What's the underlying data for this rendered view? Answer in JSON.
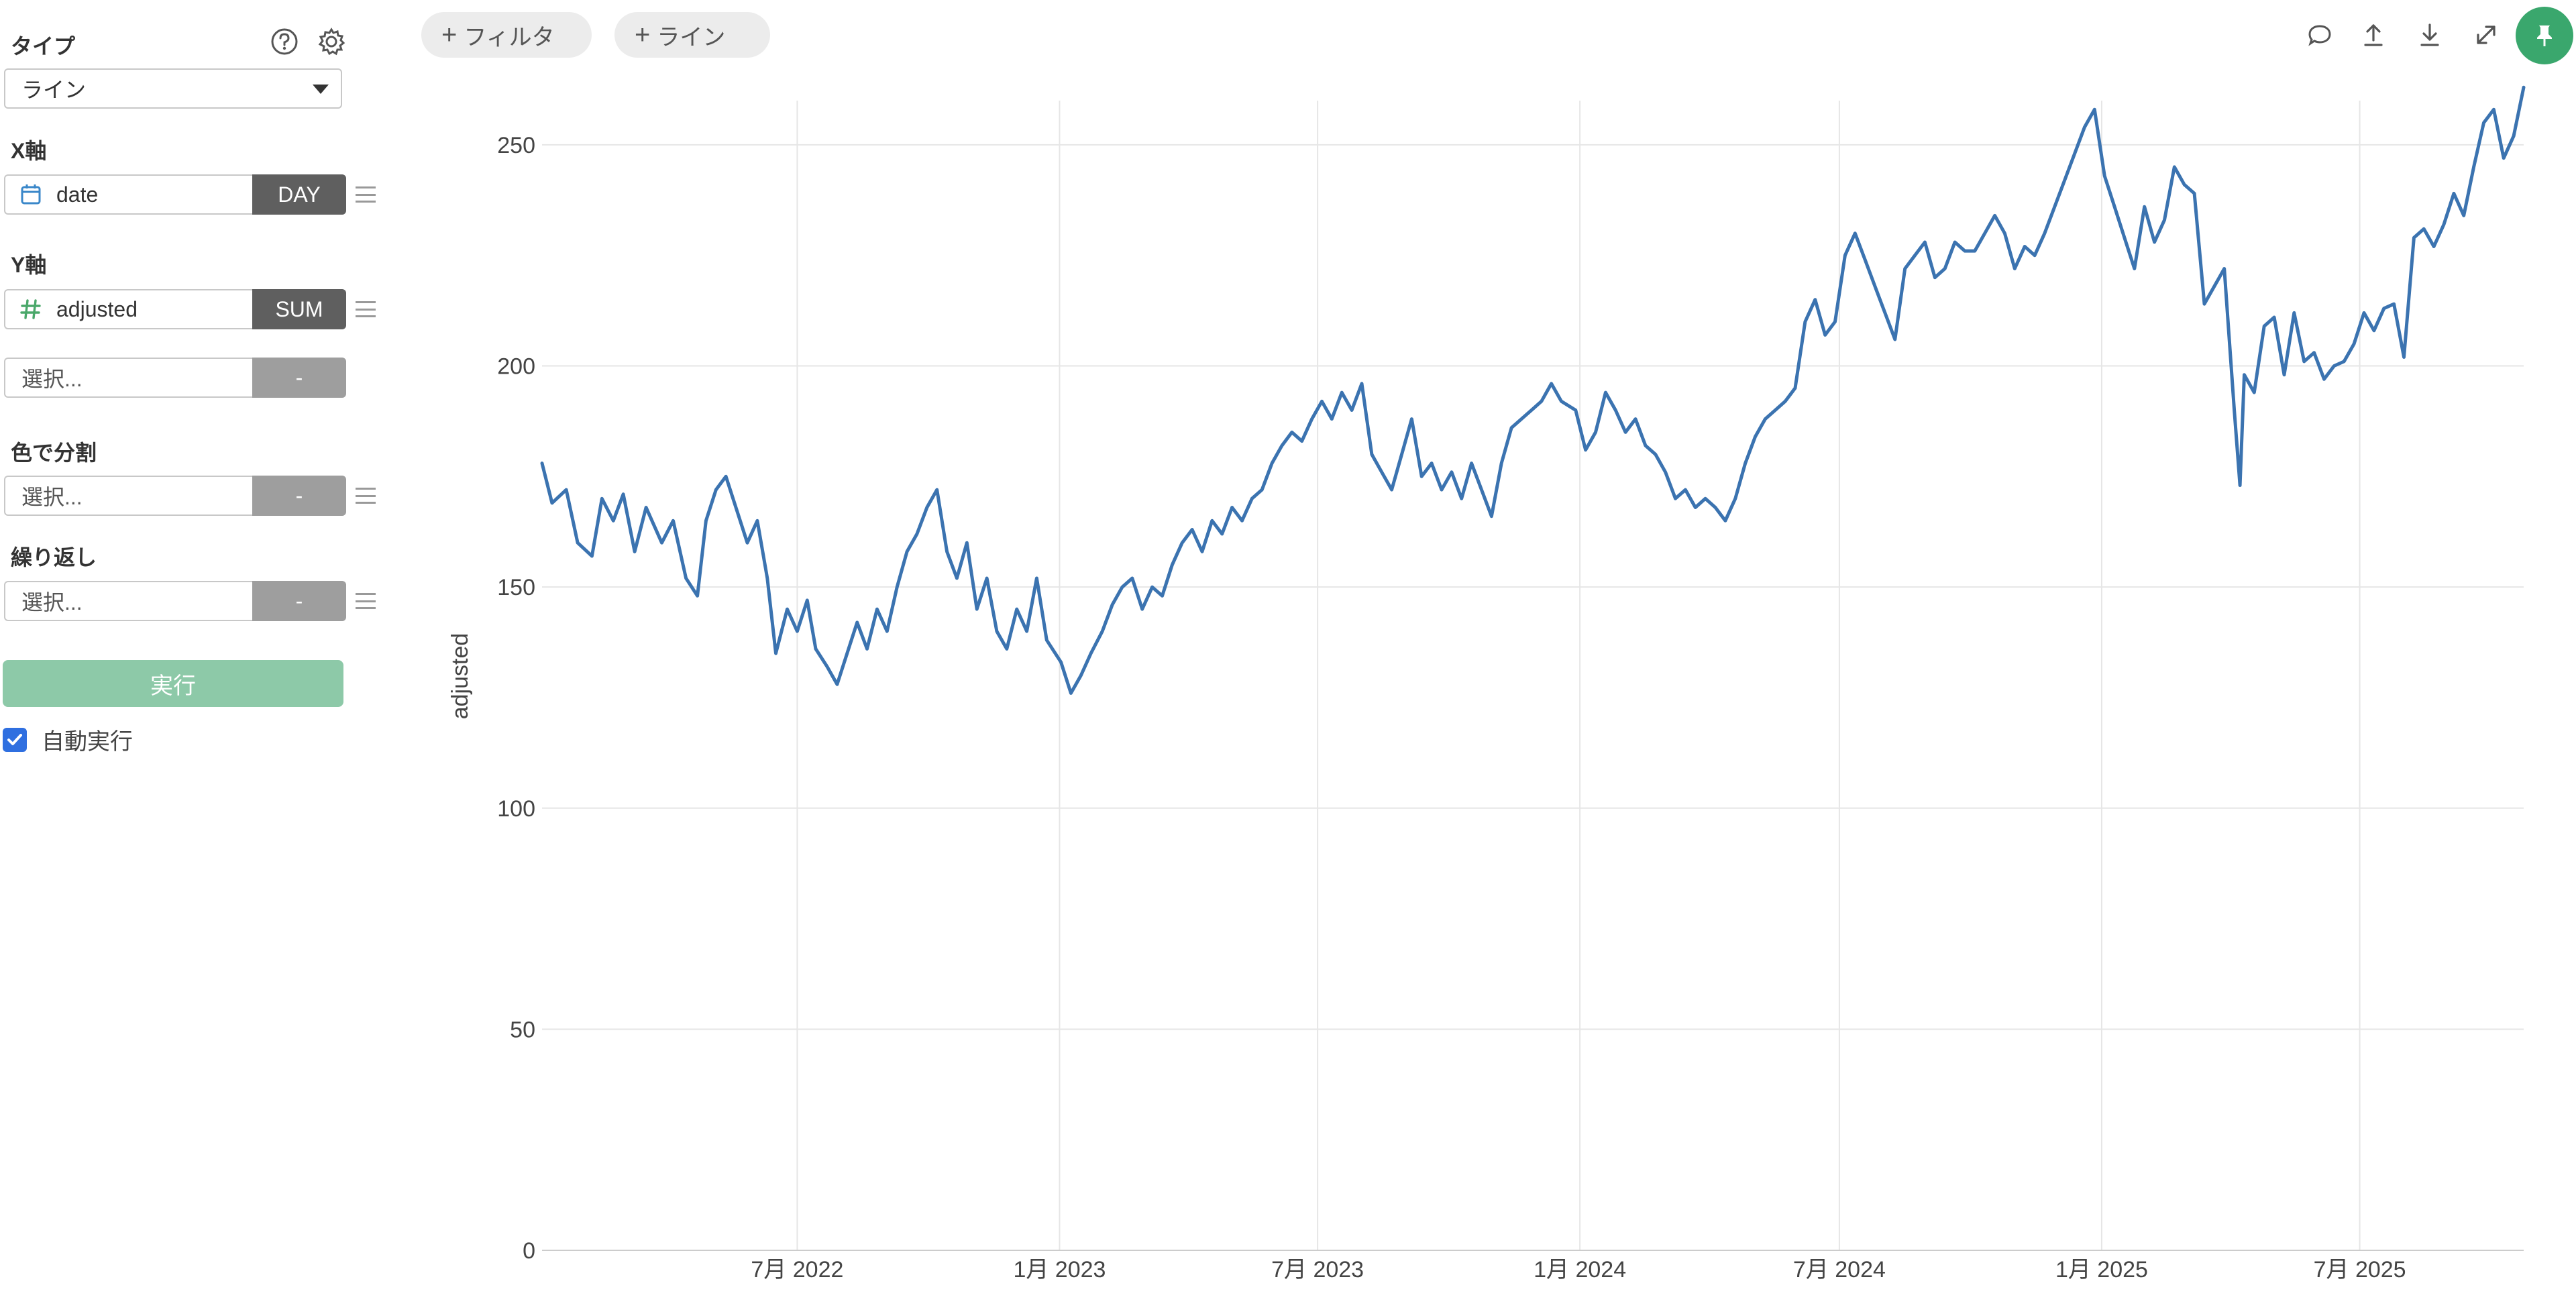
{
  "sidebar": {
    "type_label": "タイプ",
    "type_value": "ライン",
    "x_axis_label": "X軸",
    "x_field": "date",
    "x_agg": "DAY",
    "y_axis_label": "Y軸",
    "y_field": "adjusted",
    "y_agg": "SUM",
    "y_extra_placeholder": "選択...",
    "y_extra_tag": "-",
    "color_split_label": "色で分割",
    "color_split_placeholder": "選択...",
    "color_split_tag": "-",
    "repeat_label": "繰り返し",
    "repeat_placeholder": "選択...",
    "repeat_tag": "-",
    "run_label": "実行",
    "auto_run_label": "自動実行",
    "auto_run_checked": true
  },
  "topbar": {
    "filter_label": "フィルタ",
    "line_label": "ライン"
  },
  "colors": {
    "accent": "#3aa76d",
    "run_button": "#8dc9a8",
    "series_line": "#3b73b0",
    "tag_dark": "#5f5f5f",
    "tag_gray": "#9e9e9e"
  },
  "icons": [
    "help-icon",
    "gear-icon",
    "calendar-icon",
    "hash-icon",
    "comment-icon",
    "upload-icon",
    "download-icon",
    "expand-icon",
    "pin-icon"
  ],
  "chart_data": {
    "type": "line",
    "ylabel": "adjusted",
    "xlabel": "",
    "ylim": [
      0,
      260
    ],
    "xlim": [
      "2022-01-03",
      "2025-10-24"
    ],
    "y_ticks": [
      0,
      50,
      100,
      150,
      200,
      250
    ],
    "x_ticks": [
      {
        "date": "2022-07-01",
        "label": "7月 2022"
      },
      {
        "date": "2023-01-01",
        "label": "1月 2023"
      },
      {
        "date": "2023-07-01",
        "label": "7月 2023"
      },
      {
        "date": "2024-01-01",
        "label": "1月 2024"
      },
      {
        "date": "2024-07-01",
        "label": "7月 2024"
      },
      {
        "date": "2025-01-01",
        "label": "1月 2025"
      },
      {
        "date": "2025-07-01",
        "label": "7月 2025"
      }
    ],
    "grid": true,
    "series": [
      {
        "values": [
          [
            "2022-01-03",
            178
          ],
          [
            "2022-01-10",
            169
          ],
          [
            "2022-01-20",
            172
          ],
          [
            "2022-01-28",
            160
          ],
          [
            "2022-02-07",
            157
          ],
          [
            "2022-02-14",
            170
          ],
          [
            "2022-02-22",
            165
          ],
          [
            "2022-03-01",
            171
          ],
          [
            "2022-03-09",
            158
          ],
          [
            "2022-03-17",
            168
          ],
          [
            "2022-03-28",
            160
          ],
          [
            "2022-04-05",
            165
          ],
          [
            "2022-04-14",
            152
          ],
          [
            "2022-04-22",
            148
          ],
          [
            "2022-04-28",
            165
          ],
          [
            "2022-05-05",
            172
          ],
          [
            "2022-05-12",
            175
          ],
          [
            "2022-05-19",
            168
          ],
          [
            "2022-05-27",
            160
          ],
          [
            "2022-06-03",
            165
          ],
          [
            "2022-06-10",
            152
          ],
          [
            "2022-06-16",
            135
          ],
          [
            "2022-06-24",
            145
          ],
          [
            "2022-07-01",
            140
          ],
          [
            "2022-07-08",
            147
          ],
          [
            "2022-07-14",
            136
          ],
          [
            "2022-07-22",
            132
          ],
          [
            "2022-07-29",
            128
          ],
          [
            "2022-08-05",
            135
          ],
          [
            "2022-08-12",
            142
          ],
          [
            "2022-08-19",
            136
          ],
          [
            "2022-08-26",
            145
          ],
          [
            "2022-09-02",
            140
          ],
          [
            "2022-09-09",
            150
          ],
          [
            "2022-09-16",
            158
          ],
          [
            "2022-09-23",
            162
          ],
          [
            "2022-09-30",
            168
          ],
          [
            "2022-10-07",
            172
          ],
          [
            "2022-10-14",
            158
          ],
          [
            "2022-10-21",
            152
          ],
          [
            "2022-10-28",
            160
          ],
          [
            "2022-11-04",
            145
          ],
          [
            "2022-11-11",
            152
          ],
          [
            "2022-11-18",
            140
          ],
          [
            "2022-11-25",
            136
          ],
          [
            "2022-12-02",
            145
          ],
          [
            "2022-12-09",
            140
          ],
          [
            "2022-12-16",
            152
          ],
          [
            "2022-12-23",
            138
          ],
          [
            "2023-01-02",
            133
          ],
          [
            "2023-01-09",
            126
          ],
          [
            "2023-01-16",
            130
          ],
          [
            "2023-01-23",
            135
          ],
          [
            "2023-01-31",
            140
          ],
          [
            "2023-02-07",
            146
          ],
          [
            "2023-02-14",
            150
          ],
          [
            "2023-02-21",
            152
          ],
          [
            "2023-02-28",
            145
          ],
          [
            "2023-03-07",
            150
          ],
          [
            "2023-03-14",
            148
          ],
          [
            "2023-03-21",
            155
          ],
          [
            "2023-03-28",
            160
          ],
          [
            "2023-04-04",
            163
          ],
          [
            "2023-04-11",
            158
          ],
          [
            "2023-04-18",
            165
          ],
          [
            "2023-04-25",
            162
          ],
          [
            "2023-05-02",
            168
          ],
          [
            "2023-05-09",
            165
          ],
          [
            "2023-05-16",
            170
          ],
          [
            "2023-05-23",
            172
          ],
          [
            "2023-05-30",
            178
          ],
          [
            "2023-06-06",
            182
          ],
          [
            "2023-06-13",
            185
          ],
          [
            "2023-06-20",
            183
          ],
          [
            "2023-06-27",
            188
          ],
          [
            "2023-07-04",
            192
          ],
          [
            "2023-07-11",
            188
          ],
          [
            "2023-07-18",
            194
          ],
          [
            "2023-07-25",
            190
          ],
          [
            "2023-08-01",
            196
          ],
          [
            "2023-08-08",
            180
          ],
          [
            "2023-08-15",
            176
          ],
          [
            "2023-08-22",
            172
          ],
          [
            "2023-08-29",
            180
          ],
          [
            "2023-09-05",
            188
          ],
          [
            "2023-09-12",
            175
          ],
          [
            "2023-09-19",
            178
          ],
          [
            "2023-09-26",
            172
          ],
          [
            "2023-10-03",
            176
          ],
          [
            "2023-10-10",
            170
          ],
          [
            "2023-10-17",
            178
          ],
          [
            "2023-10-24",
            172
          ],
          [
            "2023-10-31",
            166
          ],
          [
            "2023-11-07",
            178
          ],
          [
            "2023-11-14",
            186
          ],
          [
            "2023-11-21",
            188
          ],
          [
            "2023-11-28",
            190
          ],
          [
            "2023-12-05",
            192
          ],
          [
            "2023-12-12",
            196
          ],
          [
            "2023-12-19",
            192
          ],
          [
            "2023-12-29",
            190
          ],
          [
            "2024-01-05",
            181
          ],
          [
            "2024-01-12",
            185
          ],
          [
            "2024-01-19",
            194
          ],
          [
            "2024-01-26",
            190
          ],
          [
            "2024-02-02",
            185
          ],
          [
            "2024-02-09",
            188
          ],
          [
            "2024-02-16",
            182
          ],
          [
            "2024-02-23",
            180
          ],
          [
            "2024-03-01",
            176
          ],
          [
            "2024-03-08",
            170
          ],
          [
            "2024-03-15",
            172
          ],
          [
            "2024-03-22",
            168
          ],
          [
            "2024-03-29",
            170
          ],
          [
            "2024-04-05",
            168
          ],
          [
            "2024-04-12",
            165
          ],
          [
            "2024-04-19",
            170
          ],
          [
            "2024-04-26",
            178
          ],
          [
            "2024-05-03",
            184
          ],
          [
            "2024-05-10",
            188
          ],
          [
            "2024-05-17",
            190
          ],
          [
            "2024-05-24",
            192
          ],
          [
            "2024-05-31",
            195
          ],
          [
            "2024-06-07",
            210
          ],
          [
            "2024-06-14",
            215
          ],
          [
            "2024-06-21",
            207
          ],
          [
            "2024-06-28",
            210
          ],
          [
            "2024-07-05",
            225
          ],
          [
            "2024-07-12",
            230
          ],
          [
            "2024-07-19",
            224
          ],
          [
            "2024-07-26",
            218
          ],
          [
            "2024-08-02",
            212
          ],
          [
            "2024-08-09",
            206
          ],
          [
            "2024-08-16",
            222
          ],
          [
            "2024-08-23",
            225
          ],
          [
            "2024-08-30",
            228
          ],
          [
            "2024-09-06",
            220
          ],
          [
            "2024-09-13",
            222
          ],
          [
            "2024-09-20",
            228
          ],
          [
            "2024-09-27",
            226
          ],
          [
            "2024-10-04",
            226
          ],
          [
            "2024-10-11",
            230
          ],
          [
            "2024-10-18",
            234
          ],
          [
            "2024-10-25",
            230
          ],
          [
            "2024-11-01",
            222
          ],
          [
            "2024-11-08",
            227
          ],
          [
            "2024-11-15",
            225
          ],
          [
            "2024-11-22",
            230
          ],
          [
            "2024-11-29",
            236
          ],
          [
            "2024-12-06",
            242
          ],
          [
            "2024-12-13",
            248
          ],
          [
            "2024-12-20",
            254
          ],
          [
            "2024-12-27",
            258
          ],
          [
            "2025-01-03",
            243
          ],
          [
            "2025-01-10",
            236
          ],
          [
            "2025-01-17",
            229
          ],
          [
            "2025-01-24",
            222
          ],
          [
            "2025-01-31",
            236
          ],
          [
            "2025-02-07",
            228
          ],
          [
            "2025-02-14",
            233
          ],
          [
            "2025-02-21",
            245
          ],
          [
            "2025-02-28",
            241
          ],
          [
            "2025-03-07",
            239
          ],
          [
            "2025-03-14",
            214
          ],
          [
            "2025-03-21",
            218
          ],
          [
            "2025-03-28",
            222
          ],
          [
            "2025-04-04",
            190
          ],
          [
            "2025-04-08",
            173
          ],
          [
            "2025-04-11",
            198
          ],
          [
            "2025-04-18",
            194
          ],
          [
            "2025-04-25",
            209
          ],
          [
            "2025-05-02",
            211
          ],
          [
            "2025-05-09",
            198
          ],
          [
            "2025-05-16",
            212
          ],
          [
            "2025-05-23",
            201
          ],
          [
            "2025-05-30",
            203
          ],
          [
            "2025-06-06",
            197
          ],
          [
            "2025-06-13",
            200
          ],
          [
            "2025-06-20",
            201
          ],
          [
            "2025-06-27",
            205
          ],
          [
            "2025-07-04",
            212
          ],
          [
            "2025-07-11",
            208
          ],
          [
            "2025-07-18",
            213
          ],
          [
            "2025-07-25",
            214
          ],
          [
            "2025-08-01",
            202
          ],
          [
            "2025-08-08",
            229
          ],
          [
            "2025-08-15",
            231
          ],
          [
            "2025-08-22",
            227
          ],
          [
            "2025-08-29",
            232
          ],
          [
            "2025-09-05",
            239
          ],
          [
            "2025-09-12",
            234
          ],
          [
            "2025-09-19",
            245
          ],
          [
            "2025-09-26",
            255
          ],
          [
            "2025-10-03",
            258
          ],
          [
            "2025-10-10",
            247
          ],
          [
            "2025-10-17",
            252
          ],
          [
            "2025-10-24",
            263
          ]
        ]
      }
    ]
  }
}
